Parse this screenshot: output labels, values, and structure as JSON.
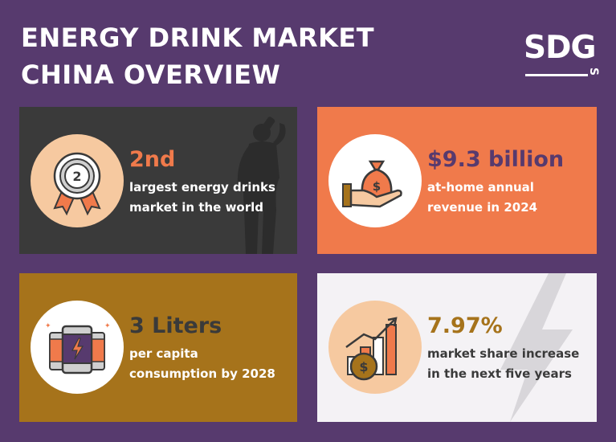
{
  "header": {
    "title_line1": "ENERGY DRINK MARKET",
    "title_line2": "CHINA OVERVIEW"
  },
  "logo": {
    "text": "SDG",
    "suffix": "S"
  },
  "colors": {
    "background": "#573a6e",
    "dark": "#3a3a3a",
    "orange": "#f07a4b",
    "gold": "#a6731b",
    "light": "#f4f2f5",
    "peach": "#f6c9a0"
  },
  "cards": [
    {
      "icon": "ribbon-medal-icon",
      "stat": "2nd",
      "desc_line1": "largest energy drinks",
      "desc_line2": "market in the world"
    },
    {
      "icon": "money-bag-hand-icon",
      "stat": "$9.3 billion",
      "desc_line1": "at-home annual",
      "desc_line2": "revenue in 2024"
    },
    {
      "icon": "energy-cans-icon",
      "stat": "3 Liters",
      "desc_line1": "per capita",
      "desc_line2": "consumption by 2028"
    },
    {
      "icon": "growth-chart-coin-icon",
      "stat": "7.97%",
      "desc_line1": "market share increase",
      "desc_line2": "in the next five years"
    }
  ]
}
